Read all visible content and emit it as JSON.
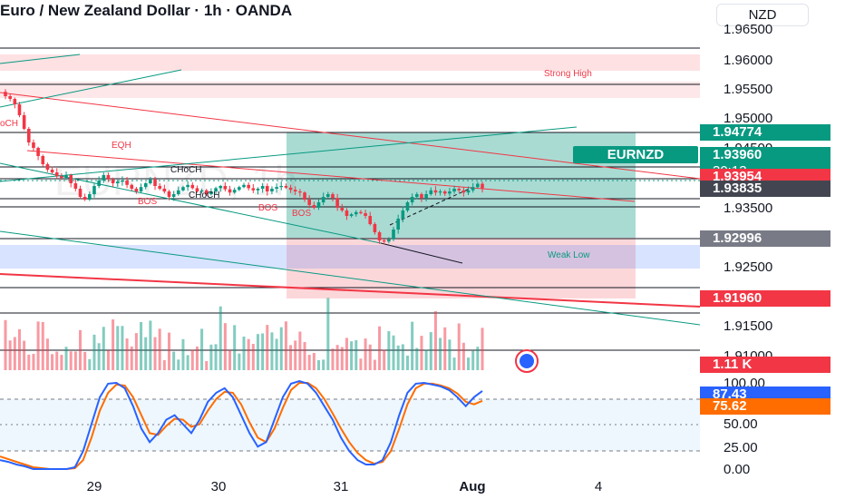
{
  "header": {
    "title": "Euro / New Zealand Dollar · 1h · OANDA",
    "currency": "NZD"
  },
  "price_axis": {
    "ticks": [
      "1.96500",
      "1.96000",
      "1.95500",
      "1.95000",
      "1.94500",
      "1.93500",
      "1.92500",
      "1.91500",
      "1.91000"
    ]
  },
  "price_labels": {
    "resistance": "1.94774",
    "last_price": "1.93960",
    "countdown": "30:13",
    "level_red": "1.93954",
    "level_dark": "1.93835",
    "level_gray": "1.92996",
    "stop_level": "1.91960",
    "volume": "1.11 K"
  },
  "symbol_tag": "EURNZD",
  "annotations": {
    "strong_high": "Strong High",
    "weak_low": "Weak Low",
    "eqh": "EQH",
    "choch_1": "CHoCH",
    "choch_2": "CHoCH",
    "choch_left": "oCH",
    "bos_1": "BOS",
    "bos_2": "BOS",
    "bos_3": "BOS"
  },
  "watermark": "EURNZD, 1h",
  "oscillator": {
    "ticks": [
      "100.00",
      "75.00",
      "50.00",
      "25.00",
      "0.00"
    ],
    "k_value": "87.43",
    "d_value": "75.62"
  },
  "time_axis": {
    "ticks": [
      "29",
      "30",
      "31",
      "Aug",
      "4"
    ]
  },
  "colors": {
    "bull": "#089981",
    "bear": "#f23645",
    "k_line": "#2962ff",
    "d_line": "#ff6d00",
    "accent_red": "#f23645",
    "accent_green": "#089981"
  },
  "chart_data": {
    "type": "candlestick",
    "symbol": "EURNZD",
    "timeframe": "1h",
    "ylim": [
      1.9085,
      1.9685
    ],
    "x_ticks": [
      "29",
      "30",
      "31",
      "Aug",
      "4"
    ],
    "close": [
      1.9565,
      1.956,
      1.955,
      1.953,
      1.9505,
      1.948,
      1.947,
      1.9455,
      1.944,
      1.943,
      1.9425,
      1.9418,
      1.9415,
      1.942,
      1.9405,
      1.9395,
      1.938,
      1.9375,
      1.9385,
      1.94,
      1.941,
      1.942,
      1.9412,
      1.9405,
      1.9408,
      1.941,
      1.9402,
      1.9395,
      1.939,
      1.9398,
      1.9405,
      1.9412,
      1.94,
      1.9395,
      1.939,
      1.938,
      1.9385,
      1.9392,
      1.9398,
      1.9402,
      1.9396,
      1.939,
      1.9392,
      1.9385,
      1.939,
      1.9396,
      1.94,
      1.9394,
      1.9388,
      1.9393,
      1.9398,
      1.9402,
      1.9396,
      1.9392,
      1.9395,
      1.94,
      1.939,
      1.9395,
      1.9398,
      1.94,
      1.9397,
      1.9393,
      1.939,
      1.9388,
      1.9375,
      1.9365,
      1.936,
      1.937,
      1.938,
      1.9385,
      1.9378,
      1.936,
      1.9355,
      1.9345,
      1.9348,
      1.9352,
      1.935,
      1.9345,
      1.933,
      1.9315,
      1.93,
      1.9298,
      1.9302,
      1.932,
      1.934,
      1.9355,
      1.937,
      1.938,
      1.9385,
      1.9378,
      1.9385,
      1.9392,
      1.9388,
      1.939,
      1.9386,
      1.939,
      1.9395,
      1.9392,
      1.9388,
      1.9392,
      1.9398,
      1.9404,
      1.9396
    ],
    "stoch_k": [
      10,
      8,
      5,
      3,
      0,
      0,
      0,
      0,
      0,
      2,
      20,
      50,
      80,
      95,
      96,
      90,
      70,
      45,
      30,
      40,
      55,
      60,
      50,
      40,
      55,
      75,
      85,
      90,
      80,
      60,
      40,
      25,
      30,
      55,
      80,
      95,
      98,
      95,
      85,
      70,
      55,
      35,
      20,
      10,
      5,
      5,
      10,
      30,
      60,
      85,
      95,
      96,
      94,
      92,
      88,
      80,
      70,
      80,
      87
    ],
    "stoch_d": [
      14,
      11,
      8,
      5,
      2,
      1,
      0,
      0,
      0,
      1,
      10,
      35,
      65,
      85,
      94,
      93,
      80,
      60,
      40,
      38,
      48,
      56,
      55,
      47,
      50,
      65,
      78,
      86,
      85,
      72,
      52,
      35,
      30,
      45,
      68,
      88,
      96,
      96,
      90,
      78,
      62,
      45,
      30,
      18,
      10,
      6,
      8,
      20,
      45,
      72,
      90,
      95,
      95,
      93,
      90,
      84,
      75,
      72,
      76
    ]
  }
}
